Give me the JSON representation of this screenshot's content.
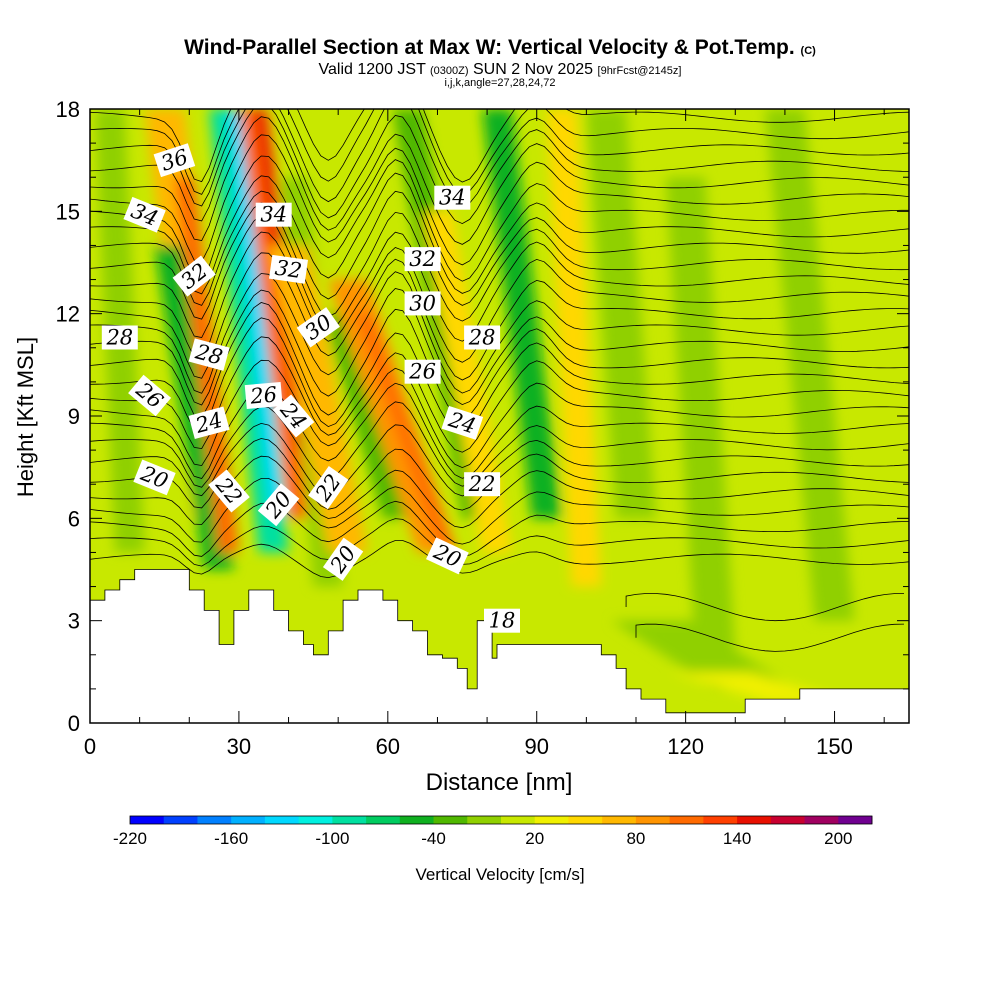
{
  "header": {
    "title": "Wind-Parallel Section at Max W: Vertical Velocity & Pot.Temp.",
    "copyright": "(C)",
    "valid_prefix": "Valid 1200 JST",
    "valid_utc": "(0300Z)",
    "valid_date": "SUN 2 Nov 2025",
    "forecast": "[9hrFcst@2145z]",
    "grid_info": "i,j,k,angle=27,28,24,72"
  },
  "chart_data": {
    "type": "contour-cross-section",
    "xlabel": "Distance [nm]",
    "ylabel": "Height [Kft MSL]",
    "xlim": [
      0,
      165
    ],
    "ylim": [
      0,
      18
    ],
    "xticks": [
      0,
      30,
      60,
      90,
      120,
      150
    ],
    "yticks": [
      0,
      3,
      6,
      9,
      12,
      15,
      18
    ],
    "colorbar": {
      "label": "Vertical Velocity [cm/s]",
      "min": -220,
      "max": 220,
      "step": 20,
      "tick_labels": [
        "-220",
        "-160",
        "-100",
        "-40",
        "20",
        "80",
        "140",
        "200"
      ],
      "colors": [
        "#0000ff",
        "#0040ff",
        "#0080ff",
        "#00b0ff",
        "#00d8ff",
        "#00f0e0",
        "#00e0a0",
        "#00cc60",
        "#10b020",
        "#50b800",
        "#90d000",
        "#c8e800",
        "#f0f000",
        "#ffd800",
        "#ffb800",
        "#ff9400",
        "#ff6a00",
        "#ff4000",
        "#e81000",
        "#c80030",
        "#a00060",
        "#700090"
      ]
    },
    "theta_contours": {
      "levels": [
        18,
        20,
        22,
        24,
        26,
        28,
        30,
        32,
        34,
        36
      ],
      "labels": [
        {
          "text": "36",
          "x": 17,
          "y": 16.5,
          "angle": -18
        },
        {
          "text": "34",
          "x": 11,
          "y": 14.9,
          "angle": 22
        },
        {
          "text": "32",
          "x": 21,
          "y": 13.1,
          "angle": -38
        },
        {
          "text": "28",
          "x": 6,
          "y": 11.3,
          "angle": 0
        },
        {
          "text": "26",
          "x": 12,
          "y": 9.6,
          "angle": 40
        },
        {
          "text": "20",
          "x": 13,
          "y": 7.2,
          "angle": 22
        },
        {
          "text": "28",
          "x": 24,
          "y": 10.8,
          "angle": 15
        },
        {
          "text": "24",
          "x": 24,
          "y": 8.8,
          "angle": -15
        },
        {
          "text": "22",
          "x": 28,
          "y": 6.8,
          "angle": 50
        },
        {
          "text": "34",
          "x": 37,
          "y": 14.9,
          "angle": 0
        },
        {
          "text": "32",
          "x": 40,
          "y": 13.3,
          "angle": 8
        },
        {
          "text": "26",
          "x": 35,
          "y": 9.6,
          "angle": -5
        },
        {
          "text": "20",
          "x": 38,
          "y": 6.4,
          "angle": -50
        },
        {
          "text": "30",
          "x": 46,
          "y": 11.6,
          "angle": -35
        },
        {
          "text": "24",
          "x": 41,
          "y": 9.0,
          "angle": 50
        },
        {
          "text": "22",
          "x": 48,
          "y": 6.9,
          "angle": -55
        },
        {
          "text": "20",
          "x": 51,
          "y": 4.8,
          "angle": -55
        },
        {
          "text": "34",
          "x": 73,
          "y": 15.4,
          "angle": 0
        },
        {
          "text": "32",
          "x": 67,
          "y": 13.6,
          "angle": 0
        },
        {
          "text": "30",
          "x": 67,
          "y": 12.3,
          "angle": 0
        },
        {
          "text": "26",
          "x": 67,
          "y": 10.3,
          "angle": 0
        },
        {
          "text": "28",
          "x": 79,
          "y": 11.3,
          "angle": 0
        },
        {
          "text": "24",
          "x": 75,
          "y": 8.8,
          "angle": 18
        },
        {
          "text": "22",
          "x": 79,
          "y": 7.0,
          "angle": 0
        },
        {
          "text": "20",
          "x": 72,
          "y": 4.9,
          "angle": 25
        },
        {
          "text": "18",
          "x": 83,
          "y": 3.0,
          "angle": 0
        }
      ]
    },
    "terrain_profile_kft": [
      [
        0,
        3.6
      ],
      [
        3,
        3.9
      ],
      [
        6,
        4.2
      ],
      [
        9,
        4.5
      ],
      [
        20,
        3.9
      ],
      [
        23,
        3.3
      ],
      [
        26,
        2.3
      ],
      [
        29,
        3.3
      ],
      [
        32,
        3.9
      ],
      [
        37,
        3.3
      ],
      [
        40,
        2.7
      ],
      [
        43,
        2.3
      ],
      [
        45,
        2.0
      ],
      [
        48,
        2.7
      ],
      [
        51,
        3.6
      ],
      [
        54,
        3.9
      ],
      [
        59,
        3.6
      ],
      [
        62,
        3.0
      ],
      [
        65,
        2.7
      ],
      [
        68,
        2.0
      ],
      [
        71,
        1.9
      ],
      [
        74,
        1.6
      ],
      [
        76,
        1.0
      ],
      [
        78,
        3.0
      ],
      [
        81,
        1.9
      ],
      [
        82,
        2.3
      ],
      [
        90,
        2.3
      ],
      [
        100,
        2.3
      ],
      [
        103,
        2.0
      ],
      [
        106,
        1.6
      ],
      [
        108,
        1.0
      ],
      [
        111,
        0.7
      ],
      [
        116,
        0.3
      ],
      [
        130,
        0.3
      ],
      [
        132,
        0.7
      ],
      [
        140,
        0.7
      ],
      [
        143,
        1.0
      ],
      [
        165,
        1.0
      ]
    ]
  }
}
